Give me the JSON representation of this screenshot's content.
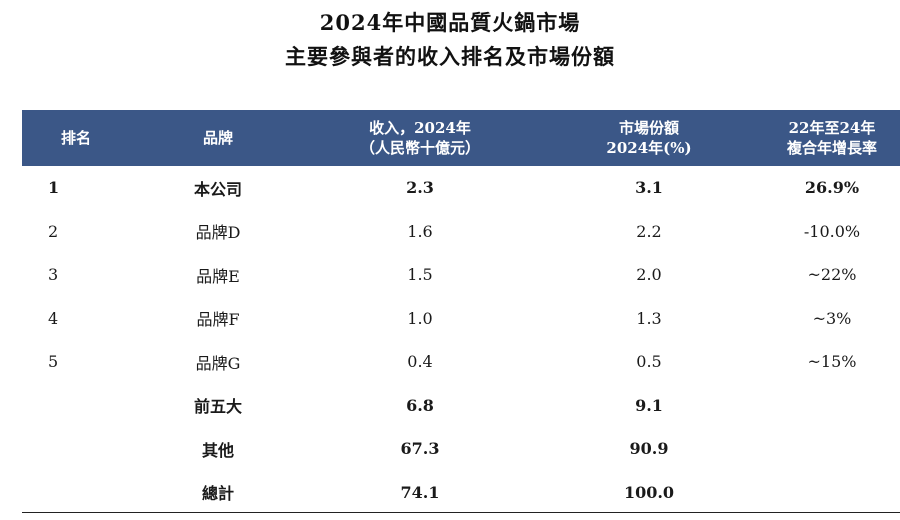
{
  "title": {
    "line1": "2024年中國品質火鍋市場",
    "line2": "主要參與者的收入排名及市場份額"
  },
  "table": {
    "headers": {
      "rank": "排名",
      "brand": "品牌",
      "revenue_line1": "收入，2024年",
      "revenue_line2": "（人民幣十億元）",
      "share_line1": "市場份額",
      "share_line2": "2024年(%)",
      "cagr_line1": "22年至24年",
      "cagr_line2": "複合年增長率"
    },
    "rows": [
      {
        "rank": "1",
        "brand": "本公司",
        "revenue": "2.3",
        "share": "3.1",
        "cagr": "26.9%",
        "bold": true
      },
      {
        "rank": "2",
        "brand": "品牌D",
        "revenue": "1.6",
        "share": "2.2",
        "cagr": "-10.0%",
        "bold": false
      },
      {
        "rank": "3",
        "brand": "品牌E",
        "revenue": "1.5",
        "share": "2.0",
        "cagr": "~22%",
        "bold": false
      },
      {
        "rank": "4",
        "brand": "品牌F",
        "revenue": "1.0",
        "share": "1.3",
        "cagr": "~3%",
        "bold": false
      },
      {
        "rank": "5",
        "brand": "品牌G",
        "revenue": "0.4",
        "share": "0.5",
        "cagr": "~15%",
        "bold": false
      },
      {
        "rank": "",
        "brand": "前五大",
        "revenue": "6.8",
        "share": "9.1",
        "cagr": "",
        "bold": true
      },
      {
        "rank": "",
        "brand": "其他",
        "revenue": "67.3",
        "share": "90.9",
        "cagr": "",
        "bold": true
      },
      {
        "rank": "",
        "brand": "總計",
        "revenue": "74.1",
        "share": "100.0",
        "cagr": "",
        "bold": true
      }
    ]
  },
  "colors": {
    "header_bg": "#3b5787",
    "header_text": "#ffffff"
  }
}
